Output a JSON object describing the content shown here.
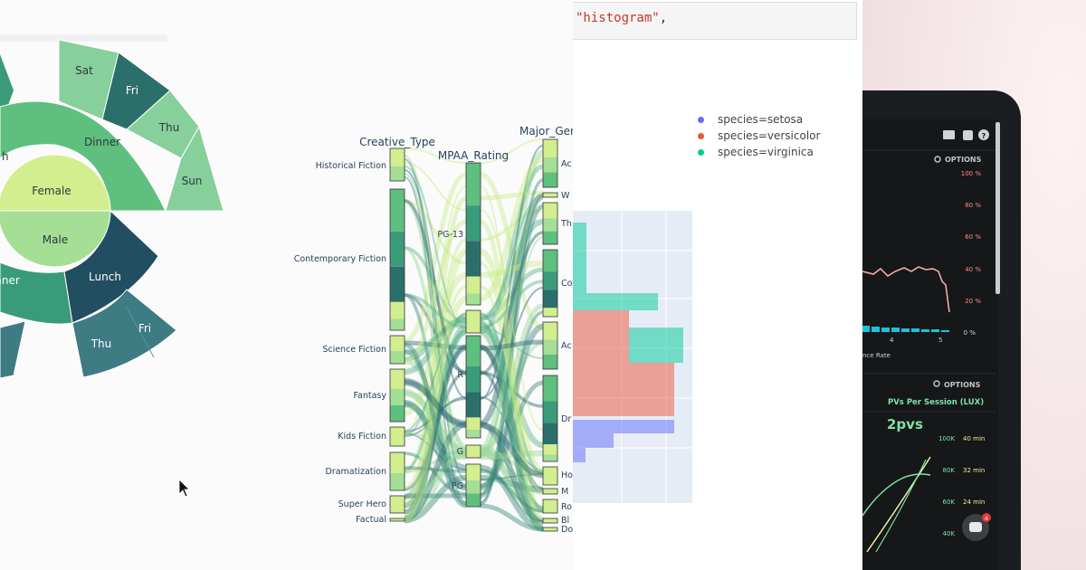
{
  "sunburst": {
    "title": "",
    "inner": [
      {
        "label": "Female"
      },
      {
        "label": "Male"
      }
    ],
    "middle": [
      {
        "label": "Dinner"
      },
      {
        "label": "nner"
      },
      {
        "label": "Lunch"
      }
    ],
    "outer": [
      {
        "label": "Sat"
      },
      {
        "label": "Fri"
      },
      {
        "label": "Thu"
      },
      {
        "label": "Sun"
      },
      {
        "label": "Thu"
      },
      {
        "label": "Fri"
      },
      {
        "label": "h"
      }
    ],
    "colors": [
      "#d2ee8e",
      "#a5de95",
      "#5fbf7f",
      "#3a9b7a",
      "#2b6f6a",
      "#214e60"
    ]
  },
  "parcats": {
    "dimensions": [
      {
        "title": "Creative_Type",
        "categories": [
          "Historical Fiction",
          "Contemporary Fiction",
          "Science Fiction",
          "Fantasy",
          "Kids Fiction",
          "Dramatization",
          "Super Hero",
          "Factual"
        ]
      },
      {
        "title": "MPAA_Rating",
        "categories": [
          "PG-13",
          "R",
          "G",
          "PG"
        ]
      },
      {
        "title": "Major_Gen",
        "categories": [
          "Ac",
          "W",
          "Th",
          "Co",
          "Ac",
          "Dr",
          "Ho",
          "M",
          "Ro",
          "Bl",
          "Do"
        ]
      }
    ]
  },
  "histogram": {
    "code_line": "\"histogram\"",
    "code_suffix": ",",
    "legend": [
      {
        "label": "species=setosa",
        "color": "#636efa"
      },
      {
        "label": "species=versicolor",
        "color": "#ef553b"
      },
      {
        "label": "species=virginica",
        "color": "#00cc96"
      }
    ]
  },
  "phone": {
    "section1_options": "OPTIONS",
    "y_ticks": [
      "100 %",
      "80 %",
      "60 %",
      "40 %",
      "20 %",
      "0 %"
    ],
    "x_ticks": [
      "4",
      "5"
    ],
    "x_label": "nce Rate",
    "section2_options": "OPTIONS",
    "metric_title": "PVs Per Session (LUX)",
    "metric_value": "2pvs",
    "right_ticks_left": [
      "100K",
      "80K",
      "60K",
      "40K"
    ],
    "right_ticks_right": [
      "40 min",
      "32 min",
      "24 min"
    ],
    "chat_badge": "4"
  }
}
